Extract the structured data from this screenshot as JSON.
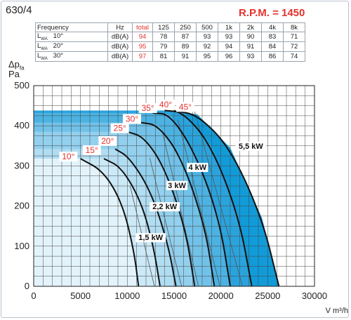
{
  "model": "630/4",
  "rpm_label": "R.P.M. = 1450",
  "noise_table": {
    "header": [
      "Frequency",
      "Hz",
      "total",
      "125",
      "250",
      "500",
      "1k",
      "2k",
      "4k",
      "8k"
    ],
    "rows": [
      {
        "label": "L",
        "sub": "WA",
        "angle": "10°",
        "unit": "dB(A)",
        "total": "94",
        "values": [
          "78",
          "87",
          "93",
          "93",
          "90",
          "83",
          "71"
        ]
      },
      {
        "label": "L",
        "sub": "WA",
        "angle": "20°",
        "unit": "dB(A)",
        "total": "95",
        "values": [
          "79",
          "89",
          "92",
          "94",
          "91",
          "84",
          "72"
        ]
      },
      {
        "label": "L",
        "sub": "WA",
        "angle": "30°",
        "unit": "dB(A)",
        "total": "97",
        "values": [
          "81",
          "91",
          "95",
          "96",
          "93",
          "86",
          "74"
        ]
      }
    ]
  },
  "chart_data": {
    "type": "line",
    "ylabel": "Δp",
    "ylabel_sub": "fa",
    "yunit": "Pa",
    "xlabel": "V m³/h",
    "xlim": [
      0,
      30000
    ],
    "ylim": [
      0,
      500
    ],
    "x_ticks": [
      0,
      5000,
      10000,
      15000,
      20000,
      25000,
      30000
    ],
    "y_ticks": [
      0,
      100,
      200,
      300,
      400,
      500
    ],
    "grid": true,
    "colors": {
      "curve": "#111111",
      "angle_label": "#e5322d",
      "fills": [
        "#e3f3fb",
        "#cbe9f7",
        "#b1ddf2",
        "#93d0ee",
        "#71c1e8",
        "#4cb2e2",
        "#2aa3dc",
        "#119bd8"
      ]
    },
    "series": [
      {
        "name": "10°",
        "points": [
          [
            5000,
            318
          ],
          [
            7500,
            286
          ],
          [
            9500,
            205
          ],
          [
            10700,
            90
          ],
          [
            11200,
            0
          ]
        ]
      },
      {
        "name": "15°",
        "points": [
          [
            7500,
            318
          ],
          [
            9400,
            296
          ],
          [
            11500,
            210
          ],
          [
            12800,
            100
          ],
          [
            13500,
            0
          ]
        ]
      },
      {
        "name": "20°",
        "points": [
          [
            8700,
            342
          ],
          [
            10200,
            322
          ],
          [
            12500,
            238
          ],
          [
            14300,
            110
          ],
          [
            15200,
            0
          ]
        ]
      },
      {
        "name": "25°",
        "points": [
          [
            10000,
            385
          ],
          [
            11800,
            372
          ],
          [
            14000,
            295
          ],
          [
            16200,
            145
          ],
          [
            17200,
            0
          ]
        ]
      },
      {
        "name": "30°",
        "points": [
          [
            11400,
            408
          ],
          [
            13300,
            402
          ],
          [
            15800,
            320
          ],
          [
            18300,
            150
          ],
          [
            19300,
            0
          ]
        ]
      },
      {
        "name": "35°",
        "points": [
          [
            12700,
            432
          ],
          [
            14600,
            428
          ],
          [
            17300,
            330
          ],
          [
            19800,
            170
          ],
          [
            21000,
            0
          ]
        ]
      },
      {
        "name": "40°",
        "points": [
          [
            14000,
            438
          ],
          [
            16000,
            434
          ],
          [
            19000,
            350
          ],
          [
            21900,
            175
          ],
          [
            23300,
            0
          ]
        ]
      },
      {
        "name": "45°",
        "points": [
          [
            15000,
            437
          ],
          [
            17500,
            428
          ],
          [
            21000,
            345
          ],
          [
            24400,
            170
          ],
          [
            26200,
            0
          ]
        ]
      }
    ],
    "angle_labels": [
      {
        "text": "10°",
        "x": 3700,
        "y": 316
      },
      {
        "text": "15°",
        "x": 6200,
        "y": 332
      },
      {
        "text": "20°",
        "x": 7900,
        "y": 355
      },
      {
        "text": "25°",
        "x": 9200,
        "y": 387
      },
      {
        "text": "30°",
        "x": 10500,
        "y": 410
      },
      {
        "text": "35°",
        "x": 12200,
        "y": 437
      },
      {
        "text": "40°",
        "x": 14100,
        "y": 446
      },
      {
        "text": "45°",
        "x": 16200,
        "y": 440
      }
    ],
    "power_lines": [
      {
        "label": "1,5 kW",
        "points": [
          [
            12900,
            0
          ],
          [
            10300,
            250
          ]
        ],
        "label_x": 12500,
        "label_y": 115
      },
      {
        "label": "2,2 kW",
        "points": [
          [
            15800,
            0
          ],
          [
            12400,
            320
          ]
        ],
        "label_x": 14000,
        "label_y": 192
      },
      {
        "label": "3 kW",
        "points": [
          [
            17600,
            0
          ],
          [
            13800,
            380
          ]
        ],
        "label_x": 15300,
        "label_y": 245
      },
      {
        "label": "4 kW",
        "points": [
          [
            19900,
            0
          ],
          [
            15400,
            415
          ]
        ],
        "label_x": 17500,
        "label_y": 290
      },
      {
        "label": "5,5 kW",
        "points": [
          [
            22300,
            0
          ],
          [
            17200,
            435
          ]
        ],
        "label_x": 23200,
        "label_y": 343
      }
    ]
  }
}
